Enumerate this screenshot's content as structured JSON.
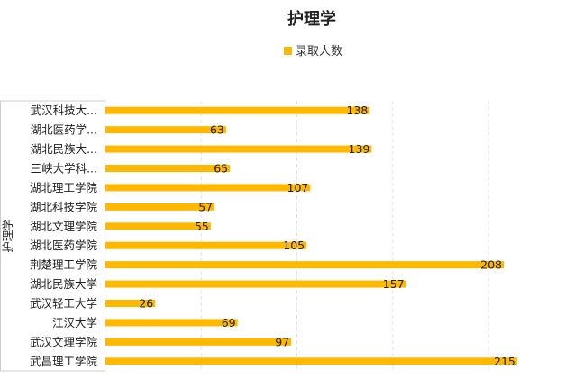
{
  "chart_data": {
    "type": "bar",
    "orientation": "horizontal",
    "title": "护理学",
    "legend": {
      "label": "录取人数",
      "position": "top-center"
    },
    "ylabel": "护理学",
    "xlabel": "",
    "xlim": [
      0,
      240
    ],
    "grid": true,
    "bar_color": "#ffb800",
    "categories": [
      "武汉科技大...",
      "湖北医药学...",
      "湖北民族大...",
      "三峡大学科...",
      "湖北理工学院",
      "湖北科技学院",
      "湖北文理学院",
      "湖北医药学院",
      "荆楚理工学院",
      "湖北民族大学",
      "武汉轻工大学",
      "江汉大学",
      "武汉文理学院",
      "武昌理工学院"
    ],
    "series": [
      {
        "name": "录取人数",
        "values": [
          138,
          63,
          139,
          65,
          107,
          57,
          55,
          105,
          208,
          157,
          26,
          69,
          97,
          215
        ]
      }
    ]
  }
}
